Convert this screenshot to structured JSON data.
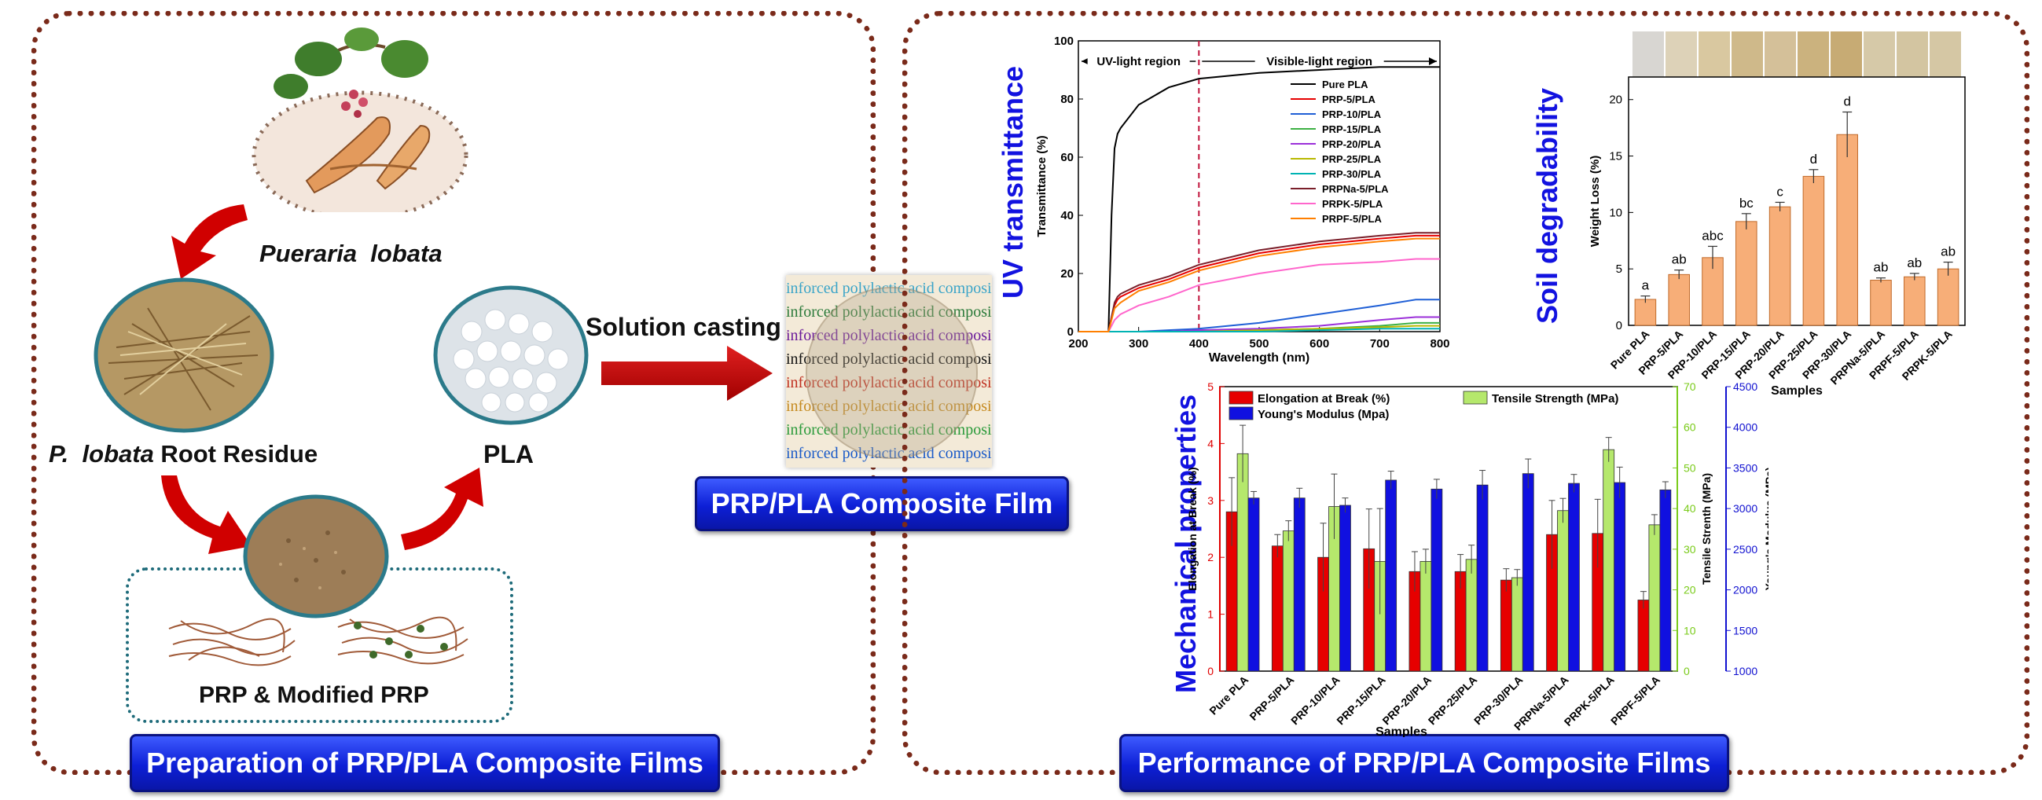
{
  "left_panel": {
    "plant_label": "Pueraria  lobata",
    "root_label_italic": "P.  lobata",
    "root_label_rest": " Root Residue",
    "pla_label": "PLA",
    "prp_label": "PRP & Modified PRP",
    "arrow_label": "Solution casting",
    "film_button": "PRP/PLA Composite Film",
    "footer_button": "Preparation of PRP/PLA Composite Films",
    "film_text": "inforced polylactic acid composite me"
  },
  "right_panel": {
    "footer_button": "Performance of PRP/PLA Composite Films",
    "uv_title": "UV transmittance",
    "soil_title": "Soil degradability",
    "mech_title": "Mechanical properties"
  },
  "chart_data": [
    {
      "type": "line",
      "title": "",
      "xlabel": "Wavelength (nm)",
      "ylabel": "Transmittance (%)",
      "xlim": [
        200,
        800
      ],
      "ylim": [
        0,
        100
      ],
      "xticks": [
        200,
        300,
        400,
        500,
        600,
        700,
        800
      ],
      "yticks": [
        0,
        20,
        40,
        60,
        80,
        100
      ],
      "region_labels": [
        "UV-light region",
        "Visible-light region"
      ],
      "divider_x": 400,
      "legend_position": "right",
      "x": [
        200,
        250,
        255,
        260,
        265,
        270,
        300,
        350,
        400,
        500,
        600,
        700,
        760,
        800
      ],
      "series": [
        {
          "name": "Pure PLA",
          "color": "#000000",
          "values": [
            0,
            0,
            40,
            63,
            68,
            70,
            78,
            84,
            87,
            89,
            90,
            91,
            91,
            91
          ]
        },
        {
          "name": "PRP-5/PLA",
          "color": "#e60000",
          "values": [
            0,
            0,
            5,
            9,
            11,
            12,
            15,
            18,
            22,
            27,
            30,
            32,
            33,
            33
          ]
        },
        {
          "name": "PRP-10/PLA",
          "color": "#1f5fd6",
          "values": [
            0,
            0,
            0,
            0,
            0,
            0,
            0,
            0.5,
            1,
            3,
            6,
            9,
            11,
            11
          ]
        },
        {
          "name": "PRP-15/PLA",
          "color": "#3cb043",
          "values": [
            0,
            0,
            0,
            0,
            0,
            0,
            0,
            0,
            0,
            0.5,
            1,
            2,
            3,
            3
          ]
        },
        {
          "name": "PRP-20/PLA",
          "color": "#9b30d9",
          "values": [
            0,
            0,
            0,
            0,
            0,
            0,
            0,
            0,
            0.5,
            1,
            2,
            4,
            5,
            5
          ]
        },
        {
          "name": "PRP-25/PLA",
          "color": "#b8b800",
          "values": [
            0,
            0,
            0,
            0,
            0,
            0,
            0,
            0,
            0,
            0.5,
            1,
            1.5,
            2,
            2
          ]
        },
        {
          "name": "PRP-30/PLA",
          "color": "#00b3b3",
          "values": [
            0,
            0,
            0,
            0,
            0,
            0,
            0,
            0,
            0,
            0,
            0.5,
            1,
            1,
            1
          ]
        },
        {
          "name": "PRPNa-5/PLA",
          "color": "#7a1f2a",
          "values": [
            0,
            0,
            5,
            10,
            12,
            13,
            16,
            19,
            23,
            28,
            31,
            33,
            34,
            34
          ]
        },
        {
          "name": "PRPK-5/PLA",
          "color": "#ff66cc",
          "values": [
            0,
            0,
            2,
            4,
            5,
            6,
            9,
            12,
            16,
            20,
            23,
            24,
            25,
            25
          ]
        },
        {
          "name": "PRPF-5/PLA",
          "color": "#ff7f00",
          "values": [
            0,
            0,
            4,
            8,
            9,
            10,
            14,
            17,
            21,
            26,
            29,
            31,
            32,
            32
          ]
        }
      ]
    },
    {
      "type": "bar",
      "title": "",
      "xlabel": "Samples",
      "ylabel": "Weight Loss (%)",
      "ylim": [
        0,
        22
      ],
      "yticks": [
        0,
        5,
        10,
        15,
        20
      ],
      "categories": [
        "Pure PLA",
        "PRP-5/PLA",
        "PRP-10/PLA",
        "PRP-15/PLA",
        "PRP-20/PLA",
        "PRP-25/PLA",
        "PRP-30/PLA",
        "PRPNa-5/PLA",
        "PRPF-5/PLA",
        "PRPK-5/PLA"
      ],
      "values": [
        2.3,
        4.5,
        6.0,
        9.2,
        10.5,
        13.2,
        16.9,
        4.0,
        4.3,
        5.0
      ],
      "errors": [
        0.3,
        0.4,
        1.0,
        0.7,
        0.4,
        0.6,
        2.0,
        0.2,
        0.3,
        0.6
      ],
      "letters": [
        "a",
        "ab",
        "abc",
        "bc",
        "c",
        "d",
        "d",
        "ab",
        "ab",
        "ab"
      ],
      "bar_color": "#f7ae78"
    },
    {
      "type": "bar",
      "title": "",
      "xlabel": "Samples",
      "categories": [
        "Pure PLA",
        "PRP-5/PLA",
        "PRP-10/PLA",
        "PRP-15/PLA",
        "PRP-20/PLA",
        "PRP-25/PLA",
        "PRP-30/PLA",
        "PRPNa-5/PLA",
        "PRPK-5/PLA",
        "PRPF-5/PLA"
      ],
      "axes": [
        {
          "label": "Elongation at Break (%)",
          "ylim": [
            0,
            5
          ],
          "yticks": [
            0,
            1,
            2,
            3,
            4,
            5
          ],
          "color": "#e00000"
        },
        {
          "label": "Tensile Strenth (MPa)",
          "ylim": [
            0,
            70
          ],
          "yticks": [
            0,
            10,
            20,
            30,
            40,
            50,
            60,
            70
          ],
          "color": "#7acb1a"
        },
        {
          "label": "Young's Modulus (MPa)",
          "ylim": [
            1000,
            4500
          ],
          "yticks": [
            1000,
            1500,
            2000,
            2500,
            3000,
            3500,
            4000,
            4500
          ],
          "color": "#1010d0"
        }
      ],
      "legend_position": "top",
      "series": [
        {
          "name": "Elongation at Break (%)",
          "axis": 0,
          "color": "#e60000",
          "values": [
            2.8,
            2.2,
            2.0,
            2.15,
            1.75,
            1.75,
            1.6,
            2.4,
            2.42,
            1.25
          ],
          "errors": [
            0.6,
            0.2,
            0.6,
            0.7,
            0.35,
            0.3,
            0.2,
            0.6,
            0.6,
            0.15
          ]
        },
        {
          "name": "Tensile Strength (MPa)",
          "axis": 1,
          "color": "#b5e86c",
          "values": [
            53.5,
            34.5,
            40.5,
            27,
            27,
            27.5,
            23,
            39.5,
            54.5,
            36
          ],
          "errors": [
            7,
            2.5,
            8,
            13,
            3,
            3.5,
            2,
            3,
            3,
            2.5
          ]
        },
        {
          "name": "Young's Modulus (Mpa)",
          "axis": 2,
          "color": "#1010e0",
          "values": [
            3130,
            3130,
            3040,
            3350,
            3240,
            3290,
            3430,
            3310,
            3320,
            3230
          ],
          "errors": [
            80,
            120,
            90,
            110,
            120,
            180,
            180,
            110,
            190,
            100
          ]
        }
      ]
    }
  ]
}
